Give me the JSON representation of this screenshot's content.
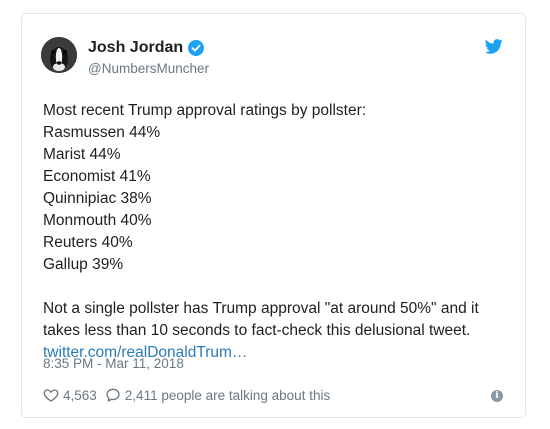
{
  "tweet": {
    "author_name": "Josh Jordan",
    "author_handle": "@NumbersMuncher",
    "lines": [
      "Most recent Trump approval ratings by pollster:",
      "Rasmussen 44%",
      "Marist 44%",
      "Economist 41%",
      "Quinnipiac 38%",
      "Monmouth 40%",
      "Reuters 40%",
      "Gallup 39%"
    ],
    "paragraph": "Not a single pollster has Trump approval \"at around 50%\" and it takes less than 10 seconds to fact-check this delusional tweet.",
    "link_text": "twitter.com/realDonaldTrum…",
    "timestamp": "8:35 PM - Mar 11, 2018",
    "likes": "4,563",
    "talking": "2,411 people are talking about this"
  },
  "icons": {
    "verified": "verified-badge-icon",
    "bird": "twitter-bird-icon",
    "heart": "heart-icon",
    "reply": "reply-bubble-icon",
    "info": "info-icon"
  },
  "colors": {
    "accent": "#1da1f2",
    "link": "#2b7bb9",
    "muted": "#697882",
    "text": "#1c2022"
  }
}
